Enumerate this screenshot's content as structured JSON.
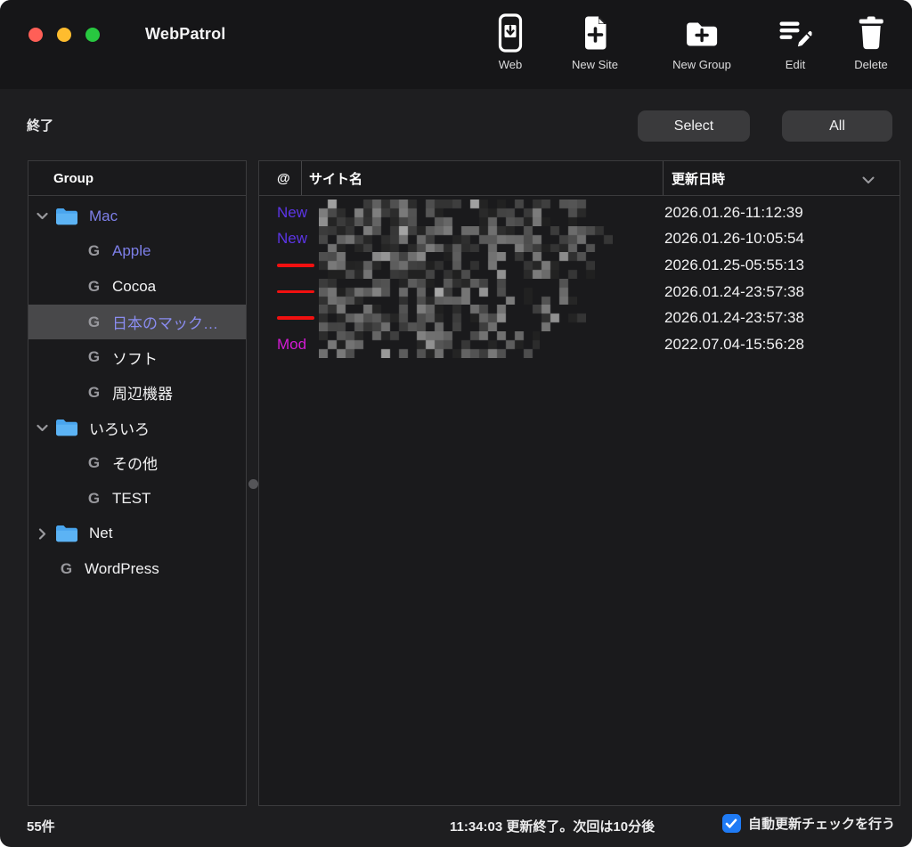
{
  "window": {
    "title": "WebPatrol"
  },
  "toolbar": {
    "items": [
      {
        "label": "Web",
        "icon": "web-download-icon"
      },
      {
        "label": "New Site",
        "icon": "new-site-icon"
      },
      {
        "label": "New Group",
        "icon": "new-group-icon"
      },
      {
        "label": "Edit",
        "icon": "edit-icon"
      },
      {
        "label": "Delete",
        "icon": "delete-icon"
      }
    ]
  },
  "actions": {
    "quit_label": "終了",
    "select_label": "Select",
    "all_label": "All"
  },
  "sidebar": {
    "header": "Group",
    "items": [
      {
        "kind": "folder",
        "expanded": true,
        "label": "Mac",
        "purple": true,
        "selected": false
      },
      {
        "kind": "group",
        "level": 1,
        "label": "Apple",
        "purple": true,
        "selected": false
      },
      {
        "kind": "group",
        "level": 1,
        "label": "Cocoa",
        "purple": false,
        "selected": false
      },
      {
        "kind": "group",
        "level": 1,
        "label": "日本のマック…",
        "purple": true,
        "selected": true
      },
      {
        "kind": "group",
        "level": 1,
        "label": "ソフト",
        "purple": false,
        "selected": false
      },
      {
        "kind": "group",
        "level": 1,
        "label": "周辺機器",
        "purple": false,
        "selected": false
      },
      {
        "kind": "folder",
        "expanded": true,
        "label": "いろいろ",
        "purple": false,
        "selected": false
      },
      {
        "kind": "group",
        "level": 1,
        "label": "その他",
        "purple": false,
        "selected": false
      },
      {
        "kind": "group",
        "level": 1,
        "label": "TEST",
        "purple": false,
        "selected": false
      },
      {
        "kind": "folder",
        "expanded": false,
        "label": "Net",
        "purple": false,
        "selected": false
      },
      {
        "kind": "group",
        "level": 0,
        "label": "WordPress",
        "purple": false,
        "selected": false
      }
    ]
  },
  "table": {
    "columns": [
      {
        "label": "@"
      },
      {
        "label": "サイト名"
      },
      {
        "label": "更新日時",
        "sort_indicator": "down"
      }
    ],
    "rows": [
      {
        "status": "New",
        "status_type": "new",
        "site_redacted": true,
        "blur_width": 307,
        "updated": "2026.01.26-11:12:39"
      },
      {
        "status": "New",
        "status_type": "new",
        "site_redacted": true,
        "blur_width": 330,
        "updated": "2026.01.26-10:05:54"
      },
      {
        "status": "",
        "status_type": "unchanged",
        "site_redacted": true,
        "blur_width": 310,
        "updated": "2026.01.25-05:55:13"
      },
      {
        "status": "",
        "status_type": "unchanged",
        "site_redacted": true,
        "blur_width": 290,
        "updated": "2026.01.24-23:57:38"
      },
      {
        "status": "",
        "status_type": "unchanged",
        "site_redacted": true,
        "blur_width": 300,
        "updated": "2026.01.24-23:57:38"
      },
      {
        "status": "Mod",
        "status_type": "modified",
        "site_redacted": true,
        "blur_width": 248,
        "updated": "2022.07.04-15:56:28"
      }
    ]
  },
  "status_bar": {
    "count": "55件",
    "message": "11:34:03 更新終了。次回は10分後",
    "auto_check_label": "自動更新チェックを行う",
    "auto_check_checked": true
  },
  "colors": {
    "traffic_red": "#ff5f57",
    "traffic_yellow": "#febc2e",
    "traffic_green": "#28c840",
    "folder_blue": "#49a5ee",
    "tree_purple": "#7d7fe8",
    "status_new": "#5c35e6",
    "status_unchanged": "#f11010",
    "status_modified": "#d41ad4",
    "checkbox_blue": "#1f7bf5",
    "selection_gray": "#48484a"
  }
}
